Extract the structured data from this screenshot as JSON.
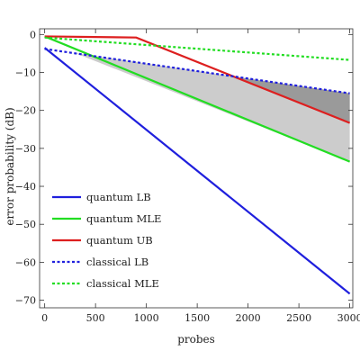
{
  "chart_data": {
    "type": "line",
    "xlabel": "probes",
    "ylabel": "error probability (dB)",
    "xlim": [
      -50,
      3030
    ],
    "ylim": [
      -72,
      1.5
    ],
    "x_ticks": [
      0,
      500,
      1000,
      1500,
      2000,
      2500,
      3000
    ],
    "y_ticks": [
      0,
      -10,
      -20,
      -30,
      -40,
      -50,
      -60,
      -70
    ],
    "grid": false,
    "legend_position": "bottom-left",
    "series": [
      {
        "name": "quantum LB",
        "color": "#1f1fdd",
        "style": "solid",
        "x": [
          0,
          3000
        ],
        "y": [
          -3.5,
          -68.3
        ]
      },
      {
        "name": "quantum MLE",
        "color": "#22dd22",
        "style": "solid",
        "x": [
          0,
          3000
        ],
        "y": [
          -0.5,
          -33.5
        ]
      },
      {
        "name": "quantum UB",
        "color": "#dd1f1f",
        "style": "solid",
        "x": [
          0,
          900,
          3000
        ],
        "y": [
          -0.5,
          -0.8,
          -23.3
        ]
      },
      {
        "name": "classical LB",
        "color": "#1f1fdd",
        "style": "dotted",
        "x": [
          0,
          3000
        ],
        "y": [
          -3.8,
          -15.5
        ]
      },
      {
        "name": "classical MLE",
        "color": "#22dd22",
        "style": "dotted",
        "x": [
          0,
          3000
        ],
        "y": [
          -0.8,
          -6.7
        ]
      }
    ],
    "shaded_regions": [
      {
        "color": "#cccccc",
        "x": [
          300,
          3000,
          3000,
          300
        ],
        "y": [
          -4.9,
          -15.5,
          -33.5,
          -4.9
        ]
      },
      {
        "color": "#9a9a9a",
        "x": [
          1829,
          3000,
          3000
        ],
        "y": [
          -11.0,
          -15.5,
          -23.3
        ]
      }
    ]
  }
}
